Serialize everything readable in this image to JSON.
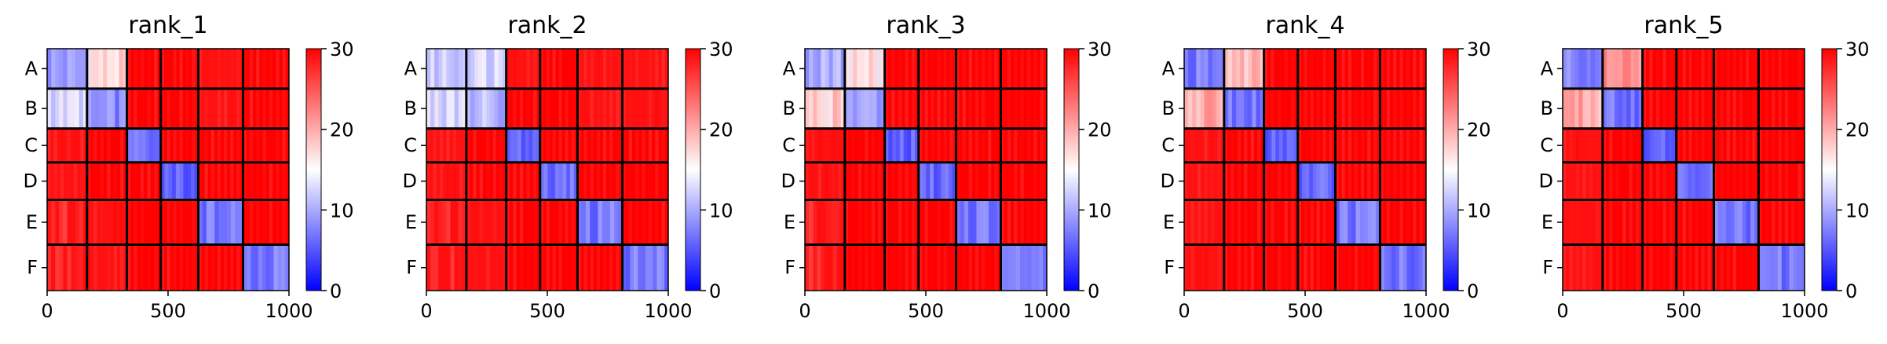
{
  "chart_data": {
    "type": "heatmap",
    "colormap": "bwr",
    "color_low": "#0000ff",
    "color_mid": "#ffffff",
    "color_high": "#ff0000",
    "clim": [
      0,
      30
    ],
    "colorbar_ticks": [
      "0",
      "10",
      "20",
      "30"
    ],
    "xlim": [
      0,
      1000
    ],
    "x_ticks": [
      "0",
      "500",
      "1000"
    ],
    "block_labels": [
      "A",
      "B",
      "C",
      "D",
      "E",
      "F"
    ],
    "block_bounds": [
      0,
      165,
      330,
      470,
      625,
      810,
      1000
    ],
    "panels": [
      {
        "title": "rank_1",
        "block_means": [
          [
            9,
            17,
            30,
            30,
            29,
            30
          ],
          [
            13,
            8,
            30,
            30,
            29,
            30
          ],
          [
            29,
            30,
            6,
            30,
            30,
            30
          ],
          [
            29,
            30,
            30,
            6,
            30,
            30
          ],
          [
            28,
            29,
            30,
            30,
            7,
            30
          ],
          [
            28,
            29,
            30,
            30,
            30,
            7
          ]
        ]
      },
      {
        "title": "rank_2",
        "block_means": [
          [
            12,
            13,
            29,
            30,
            29,
            29
          ],
          [
            13,
            11,
            30,
            30,
            29,
            29
          ],
          [
            29,
            30,
            6,
            30,
            30,
            30
          ],
          [
            29,
            30,
            30,
            6,
            30,
            30
          ],
          [
            28,
            29,
            30,
            30,
            7,
            30
          ],
          [
            28,
            29,
            30,
            30,
            30,
            7
          ]
        ]
      },
      {
        "title": "rank_3",
        "block_means": [
          [
            10,
            17,
            30,
            30,
            30,
            30
          ],
          [
            18,
            9,
            30,
            30,
            30,
            30
          ],
          [
            29,
            30,
            6,
            30,
            30,
            30
          ],
          [
            29,
            30,
            30,
            6,
            30,
            30
          ],
          [
            28,
            30,
            30,
            30,
            7,
            30
          ],
          [
            28,
            30,
            30,
            30,
            30,
            7
          ]
        ]
      },
      {
        "title": "rank_4",
        "block_means": [
          [
            7,
            19,
            30,
            30,
            30,
            30
          ],
          [
            20,
            7,
            30,
            30,
            30,
            30
          ],
          [
            29,
            30,
            6,
            30,
            30,
            30
          ],
          [
            29,
            30,
            30,
            6,
            30,
            30
          ],
          [
            29,
            30,
            30,
            30,
            7,
            30
          ],
          [
            29,
            30,
            30,
            30,
            30,
            7
          ]
        ]
      },
      {
        "title": "rank_5",
        "block_means": [
          [
            8,
            21,
            30,
            30,
            30,
            30
          ],
          [
            20,
            7,
            30,
            30,
            30,
            30
          ],
          [
            29,
            30,
            6,
            30,
            30,
            30
          ],
          [
            29,
            30,
            30,
            6,
            30,
            30
          ],
          [
            29,
            30,
            30,
            30,
            7,
            30
          ],
          [
            29,
            30,
            30,
            30,
            30,
            7
          ]
        ]
      }
    ]
  }
}
